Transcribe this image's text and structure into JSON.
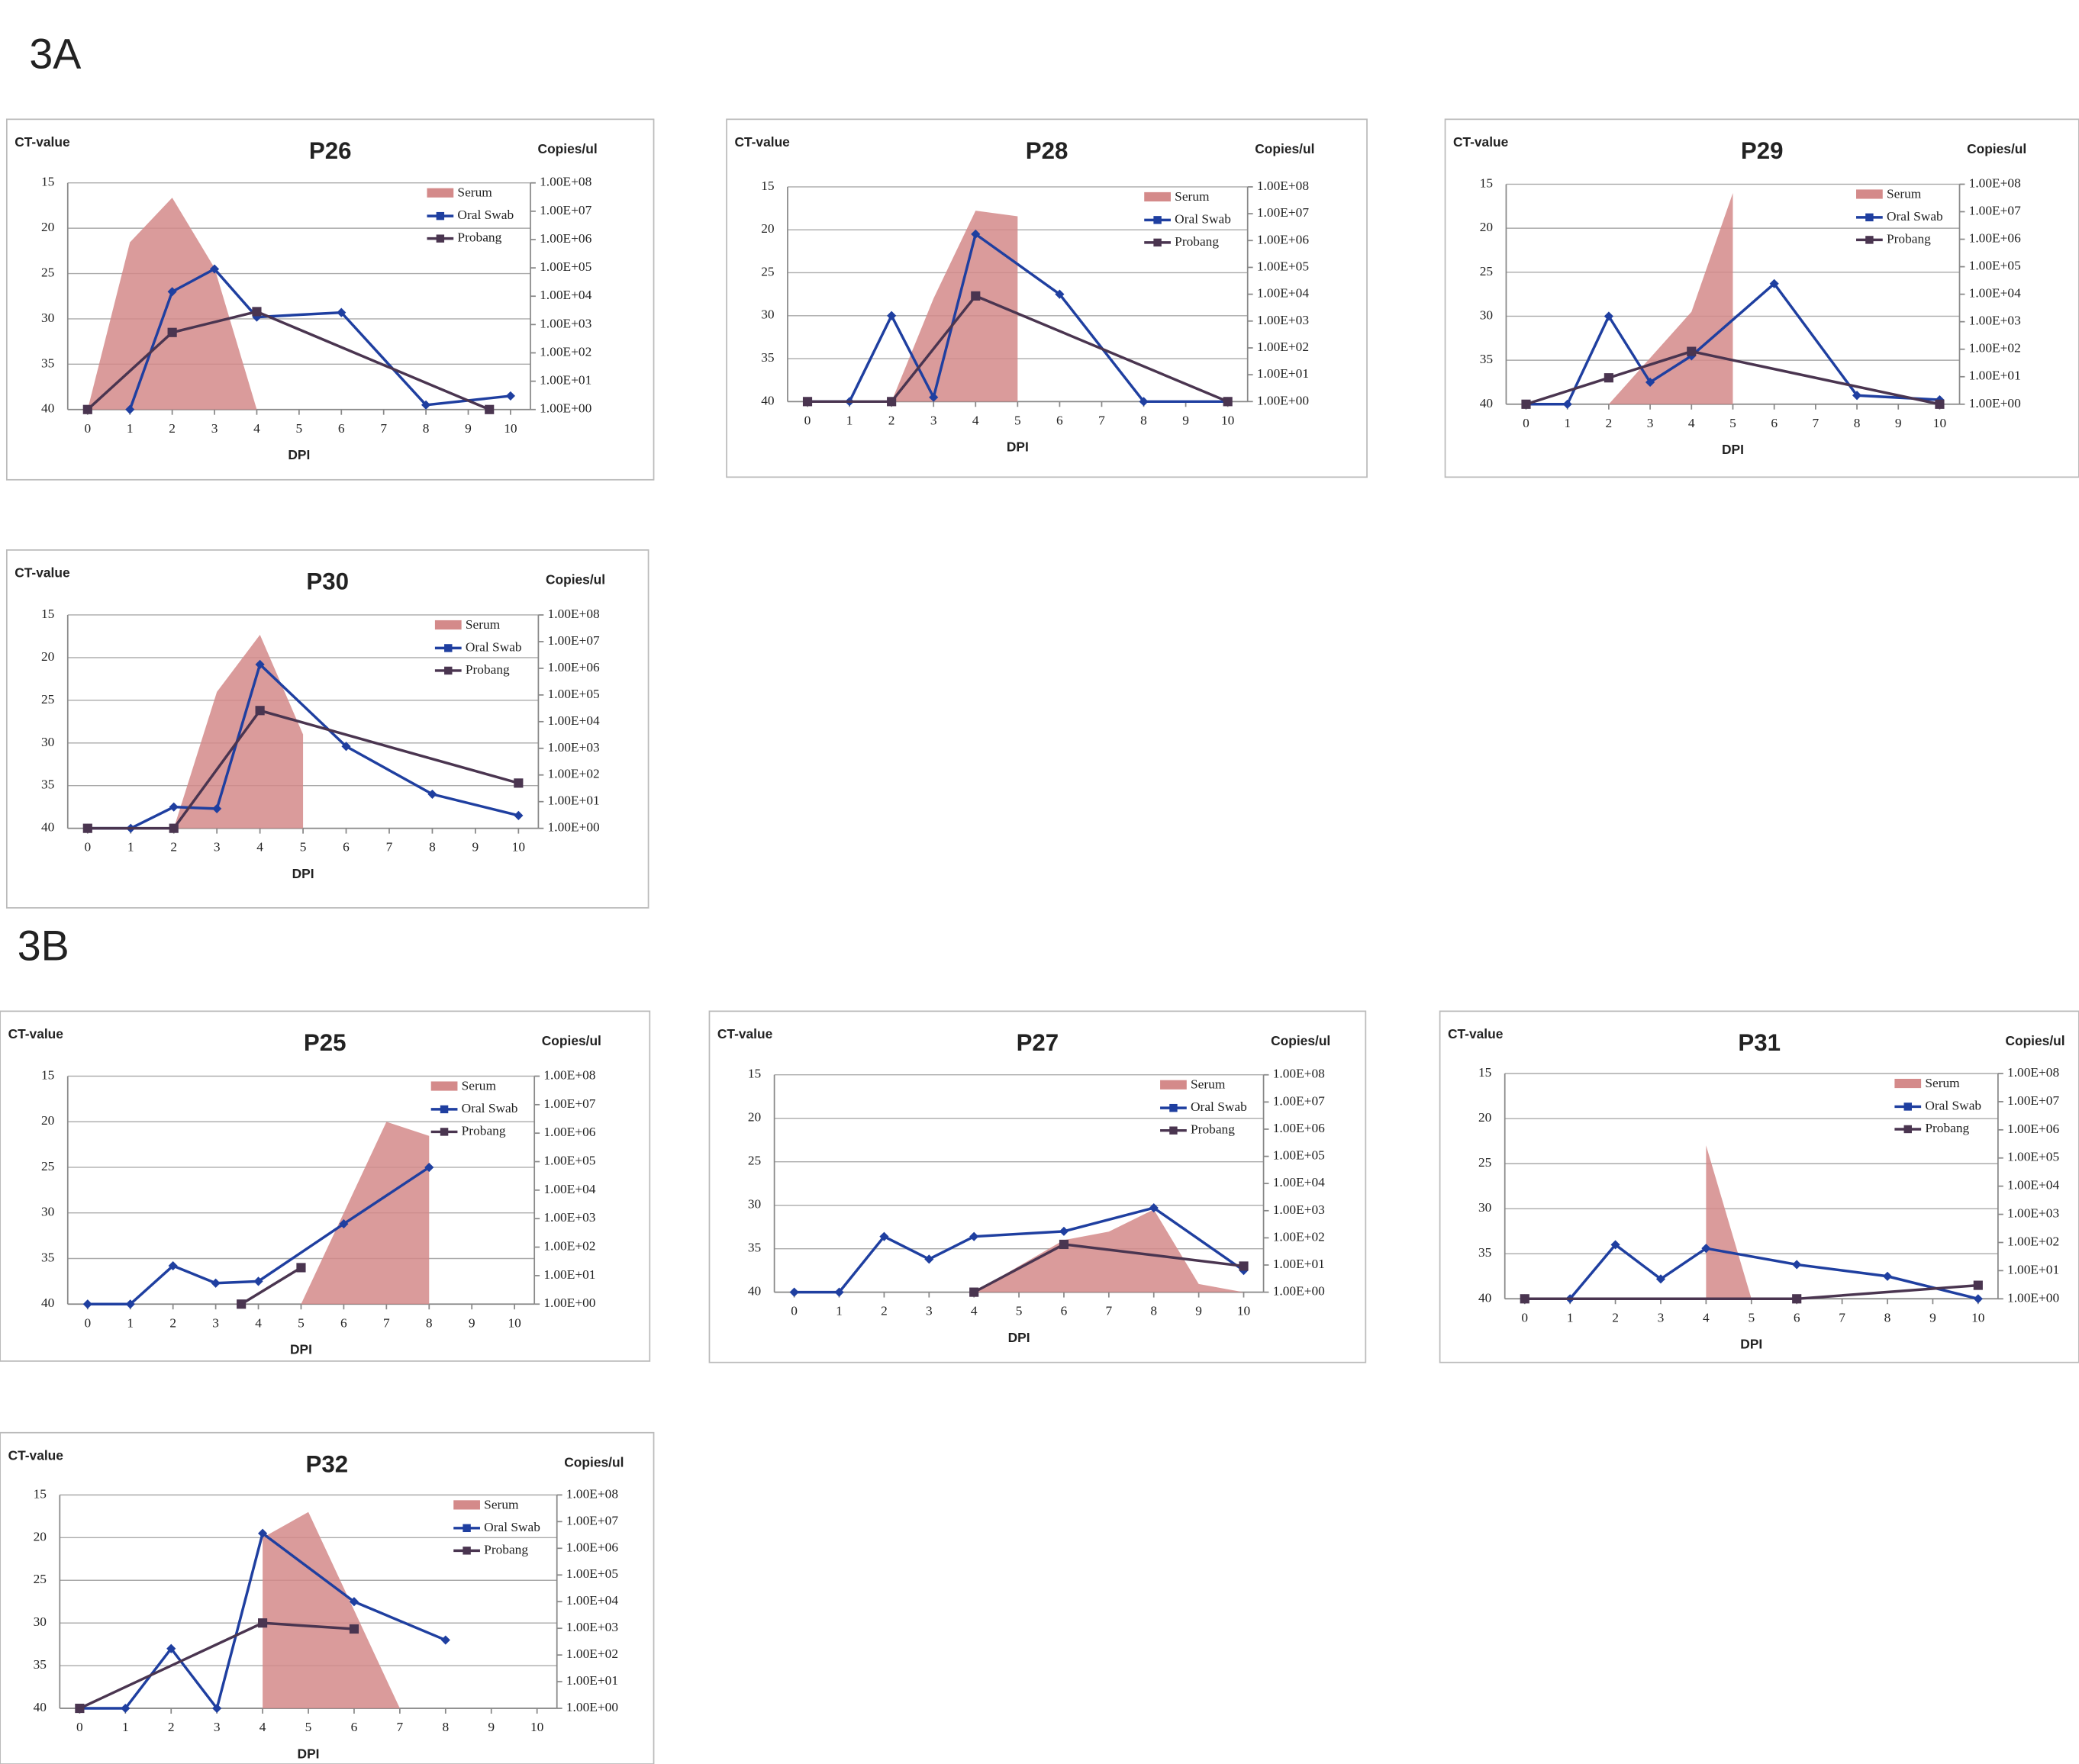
{
  "panels": [
    "3A",
    "3B"
  ],
  "chart_data": [
    {
      "type": "line",
      "title": "P26",
      "y_label": "CT-value",
      "y2_label": "Copies/ul",
      "x_label": "DPI",
      "xlim": [
        0,
        10
      ],
      "xticks": [
        0,
        1,
        2,
        3,
        4,
        5,
        6,
        7,
        8,
        9,
        10
      ],
      "ylim": [
        40,
        15
      ],
      "yticks": [
        15,
        20,
        25,
        30,
        35,
        40
      ],
      "y2lim": [
        1,
        100000000
      ],
      "y2_log": true,
      "y2ticks": [
        {
          "value": 100000000,
          "label": "1.00E+08"
        },
        {
          "value": 10000000,
          "label": "1.00E+07"
        },
        {
          "value": 1000000,
          "label": "1.00E+06"
        },
        {
          "value": 100000,
          "label": "1.00E+05"
        },
        {
          "value": 10000,
          "label": "1.00E+04"
        },
        {
          "value": 1000,
          "label": "1.00E+03"
        },
        {
          "value": 100,
          "label": "1.00E+02"
        },
        {
          "value": 10,
          "label": "1.00E+01"
        },
        {
          "value": 1,
          "label": "1.00E+00"
        }
      ],
      "grid": true,
      "legend": "upper right",
      "series": [
        {
          "name": "Serum",
          "type": "area",
          "axis": "y2",
          "color": "#d48a8a",
          "x": [
            0,
            1,
            2,
            3,
            4
          ],
          "values": [
            1,
            800000,
            30000000,
            100000,
            1
          ]
        },
        {
          "name": "Oral Swab",
          "type": "line",
          "color": "#1f3fa0",
          "x": [
            1,
            2,
            3,
            4,
            6,
            8,
            10
          ],
          "values": [
            40,
            27,
            24.5,
            29.8,
            29.3,
            39.5,
            38.5
          ]
        },
        {
          "name": "Probang",
          "type": "line",
          "color": "#4a3550",
          "x": [
            0,
            2,
            4,
            9.5
          ],
          "values": [
            40,
            31.5,
            29.2,
            40
          ]
        }
      ]
    },
    {
      "type": "line",
      "title": "P28",
      "y_label": "CT-value",
      "y2_label": "Copies/ul",
      "x_label": "DPI",
      "xlim": [
        0,
        10
      ],
      "xticks": [
        0,
        1,
        2,
        3,
        4,
        5,
        6,
        7,
        8,
        9,
        10
      ],
      "ylim": [
        40,
        15
      ],
      "yticks": [
        15,
        20,
        25,
        30,
        35,
        40
      ],
      "y2lim": [
        1,
        100000000
      ],
      "y2_log": true,
      "y2ticks": [
        {
          "value": 100000000,
          "label": "1.00E+08"
        },
        {
          "value": 10000000,
          "label": "1.00E+07"
        },
        {
          "value": 1000000,
          "label": "1.00E+06"
        },
        {
          "value": 100000,
          "label": "1.00E+05"
        },
        {
          "value": 10000,
          "label": "1.00E+04"
        },
        {
          "value": 1000,
          "label": "1.00E+03"
        },
        {
          "value": 100,
          "label": "1.00E+02"
        },
        {
          "value": 10,
          "label": "1.00E+01"
        },
        {
          "value": 1,
          "label": "1.00E+00"
        }
      ],
      "grid": true,
      "legend": "upper right",
      "series": [
        {
          "name": "Serum",
          "type": "area",
          "axis": "y2",
          "color": "#d48a8a",
          "x": [
            2,
            3,
            4,
            5
          ],
          "values": [
            1,
            7000,
            13000000,
            8000000
          ]
        },
        {
          "name": "Oral Swab",
          "type": "line",
          "color": "#1f3fa0",
          "x": [
            0,
            1,
            2,
            3,
            4,
            6,
            8,
            10
          ],
          "values": [
            40,
            40,
            30,
            39.5,
            20.5,
            27.5,
            40,
            40
          ]
        },
        {
          "name": "Probang",
          "type": "line",
          "color": "#4a3550",
          "x": [
            0,
            2,
            4,
            10
          ],
          "values": [
            40,
            40,
            27.7,
            40
          ]
        }
      ]
    },
    {
      "type": "line",
      "title": "P29",
      "y_label": "CT-value",
      "y2_label": "Copies/ul",
      "x_label": "DPI",
      "xlim": [
        0,
        10
      ],
      "xticks": [
        0,
        1,
        2,
        3,
        4,
        5,
        6,
        7,
        8,
        9,
        10
      ],
      "ylim": [
        40,
        15
      ],
      "yticks": [
        15,
        20,
        25,
        30,
        35,
        40
      ],
      "y2lim": [
        1,
        100000000
      ],
      "y2_log": true,
      "y2ticks": [
        {
          "value": 100000000,
          "label": "1.00E+08"
        },
        {
          "value": 10000000,
          "label": "1.00E+07"
        },
        {
          "value": 1000000,
          "label": "1.00E+06"
        },
        {
          "value": 100000,
          "label": "1.00E+05"
        },
        {
          "value": 10000,
          "label": "1.00E+04"
        },
        {
          "value": 1000,
          "label": "1.00E+03"
        },
        {
          "value": 100,
          "label": "1.00E+02"
        },
        {
          "value": 10,
          "label": "1.00E+01"
        },
        {
          "value": 1,
          "label": "1.00E+00"
        }
      ],
      "grid": true,
      "legend": "upper right",
      "series": [
        {
          "name": "Serum",
          "type": "area",
          "axis": "y2",
          "color": "#d48a8a",
          "x": [
            2,
            4,
            5
          ],
          "values": [
            1,
            2300,
            48000000
          ]
        },
        {
          "name": "Oral Swab",
          "type": "line",
          "color": "#1f3fa0",
          "x": [
            0,
            1,
            2,
            3,
            4,
            6,
            8,
            10
          ],
          "values": [
            40,
            40,
            30,
            37.5,
            34.5,
            26.3,
            39,
            39.5
          ]
        },
        {
          "name": "Probang",
          "type": "line",
          "color": "#4a3550",
          "x": [
            0,
            2,
            4,
            10
          ],
          "values": [
            40,
            37,
            34,
            40
          ]
        }
      ]
    },
    {
      "type": "line",
      "title": "P30",
      "y_label": "CT-value",
      "y2_label": "Copies/ul",
      "x_label": "DPI",
      "xlim": [
        0,
        10
      ],
      "xticks": [
        0,
        1,
        2,
        3,
        4,
        5,
        6,
        7,
        8,
        9,
        10
      ],
      "ylim": [
        40,
        15
      ],
      "yticks": [
        15,
        20,
        25,
        30,
        35,
        40
      ],
      "y2lim": [
        1,
        100000000
      ],
      "y2_log": true,
      "y2ticks": [
        {
          "value": 100000000,
          "label": "1.00E+08"
        },
        {
          "value": 10000000,
          "label": "1.00E+07"
        },
        {
          "value": 1000000,
          "label": "1.00E+06"
        },
        {
          "value": 100000,
          "label": "1.00E+05"
        },
        {
          "value": 10000,
          "label": "1.00E+04"
        },
        {
          "value": 1000,
          "label": "1.00E+03"
        },
        {
          "value": 100,
          "label": "1.00E+02"
        },
        {
          "value": 10,
          "label": "1.00E+01"
        },
        {
          "value": 1,
          "label": "1.00E+00"
        }
      ],
      "grid": true,
      "legend": "upper right",
      "series": [
        {
          "name": "Serum",
          "type": "area",
          "axis": "y2",
          "color": "#d48a8a",
          "x": [
            2,
            3,
            4,
            5
          ],
          "values": [
            1,
            130000,
            18000000,
            3300
          ]
        },
        {
          "name": "Oral Swab",
          "type": "line",
          "color": "#1f3fa0",
          "x": [
            0,
            1,
            2,
            3,
            4,
            6,
            8,
            10
          ],
          "values": [
            40,
            40,
            37.5,
            37.7,
            20.8,
            30.4,
            36,
            38.5
          ]
        },
        {
          "name": "Probang",
          "type": "line",
          "color": "#4a3550",
          "x": [
            0,
            2,
            4,
            10
          ],
          "values": [
            40,
            40,
            26.2,
            34.7
          ]
        }
      ]
    },
    {
      "type": "line",
      "title": "P25",
      "y_label": "CT-value",
      "y2_label": "Copies/ul",
      "x_label": "DPI",
      "xlim": [
        0,
        10
      ],
      "xticks": [
        0,
        1,
        2,
        3,
        4,
        5,
        6,
        7,
        8,
        9,
        10
      ],
      "ylim": [
        40,
        15
      ],
      "yticks": [
        15,
        20,
        25,
        30,
        35,
        40
      ],
      "y2lim": [
        1,
        100000000
      ],
      "y2_log": true,
      "y2ticks": [
        {
          "value": 100000000,
          "label": "1.00E+08"
        },
        {
          "value": 10000000,
          "label": "1.00E+07"
        },
        {
          "value": 1000000,
          "label": "1.00E+06"
        },
        {
          "value": 100000,
          "label": "1.00E+05"
        },
        {
          "value": 10000,
          "label": "1.00E+04"
        },
        {
          "value": 1000,
          "label": "1.00E+03"
        },
        {
          "value": 100,
          "label": "1.00E+02"
        },
        {
          "value": 10,
          "label": "1.00E+01"
        },
        {
          "value": 1,
          "label": "1.00E+00"
        }
      ],
      "grid": true,
      "legend": "upper right",
      "series": [
        {
          "name": "Serum",
          "type": "area",
          "axis": "y2",
          "color": "#d48a8a",
          "x": [
            5,
            7,
            8
          ],
          "values": [
            1,
            2500000,
            800000
          ]
        },
        {
          "name": "Oral Swab",
          "type": "line",
          "color": "#1f3fa0",
          "x": [
            0,
            1,
            2,
            3,
            4,
            6,
            8
          ],
          "values": [
            40,
            40,
            35.8,
            37.7,
            37.5,
            31.2,
            25
          ]
        },
        {
          "name": "Probang",
          "type": "line",
          "color": "#4a3550",
          "x": [
            3.6,
            5
          ],
          "values": [
            40,
            36
          ]
        }
      ]
    },
    {
      "type": "line",
      "title": "P27",
      "y_label": "CT-value",
      "y2_label": "Copies/ul",
      "x_label": "DPI",
      "xlim": [
        0,
        10
      ],
      "xticks": [
        0,
        1,
        2,
        3,
        4,
        5,
        6,
        7,
        8,
        9,
        10
      ],
      "ylim": [
        40,
        15
      ],
      "yticks": [
        15,
        20,
        25,
        30,
        35,
        40
      ],
      "y2lim": [
        1,
        100000000
      ],
      "y2_log": true,
      "y2ticks": [
        {
          "value": 100000000,
          "label": "1.00E+08"
        },
        {
          "value": 10000000,
          "label": "1.00E+07"
        },
        {
          "value": 1000000,
          "label": "1.00E+06"
        },
        {
          "value": 100000,
          "label": "1.00E+05"
        },
        {
          "value": 10000,
          "label": "1.00E+04"
        },
        {
          "value": 1000,
          "label": "1.00E+03"
        },
        {
          "value": 100,
          "label": "1.00E+02"
        },
        {
          "value": 10,
          "label": "1.00E+01"
        },
        {
          "value": 1,
          "label": "1.00E+00"
        }
      ],
      "grid": true,
      "legend": "upper right",
      "series": [
        {
          "name": "Serum",
          "type": "area",
          "axis": "y2",
          "color": "#d48a8a",
          "x": [
            4,
            6,
            7,
            8,
            9,
            10
          ],
          "values": [
            1,
            83,
            170,
            1100,
            2,
            1
          ]
        },
        {
          "name": "Oral Swab",
          "type": "line",
          "color": "#1f3fa0",
          "x": [
            0,
            1,
            2,
            3,
            4,
            6,
            8,
            10
          ],
          "values": [
            40,
            40,
            33.6,
            36.2,
            33.6,
            33,
            30.3,
            37.5
          ]
        },
        {
          "name": "Probang",
          "type": "line",
          "color": "#4a3550",
          "x": [
            4,
            6,
            10
          ],
          "values": [
            40,
            34.5,
            37
          ]
        }
      ]
    },
    {
      "type": "line",
      "title": "P31",
      "y_label": "CT-value",
      "y2_label": "Copies/ul",
      "x_label": "DPI",
      "xlim": [
        0,
        10
      ],
      "xticks": [
        0,
        1,
        2,
        3,
        4,
        5,
        6,
        7,
        8,
        9,
        10
      ],
      "ylim": [
        40,
        15
      ],
      "yticks": [
        15,
        20,
        25,
        30,
        35,
        40
      ],
      "y2lim": [
        1,
        100000000
      ],
      "y2_log": true,
      "y2ticks": [
        {
          "value": 100000000,
          "label": "1.00E+08"
        },
        {
          "value": 10000000,
          "label": "1.00E+07"
        },
        {
          "value": 1000000,
          "label": "1.00E+06"
        },
        {
          "value": 100000,
          "label": "1.00E+05"
        },
        {
          "value": 10000,
          "label": "1.00E+04"
        },
        {
          "value": 1000,
          "label": "1.00E+03"
        },
        {
          "value": 100,
          "label": "1.00E+02"
        },
        {
          "value": 10,
          "label": "1.00E+01"
        },
        {
          "value": 1,
          "label": "1.00E+00"
        }
      ],
      "grid": true,
      "legend": "upper right",
      "series": [
        {
          "name": "Serum",
          "type": "area",
          "axis": "y2",
          "color": "#d48a8a",
          "x": [
            4,
            5
          ],
          "values": [
            280000,
            1
          ]
        },
        {
          "name": "Oral Swab",
          "type": "line",
          "color": "#1f3fa0",
          "x": [
            0,
            1,
            2,
            3,
            4,
            6,
            8,
            10
          ],
          "values": [
            40,
            40,
            34,
            37.8,
            34.4,
            36.2,
            37.5,
            40
          ]
        },
        {
          "name": "Probang",
          "type": "line",
          "color": "#4a3550",
          "x": [
            0,
            6,
            10
          ],
          "values": [
            40,
            40,
            38.5
          ]
        }
      ]
    },
    {
      "type": "line",
      "title": "P32",
      "y_label": "CT-value",
      "y2_label": "Copies/ul",
      "x_label": "DPI",
      "xlim": [
        0,
        10
      ],
      "xticks": [
        0,
        1,
        2,
        3,
        4,
        5,
        6,
        7,
        8,
        9,
        10
      ],
      "ylim": [
        40,
        15
      ],
      "yticks": [
        15,
        20,
        25,
        30,
        35,
        40
      ],
      "y2lim": [
        1,
        100000000
      ],
      "y2_log": true,
      "y2ticks": [
        {
          "value": 100000000,
          "label": "1.00E+08"
        },
        {
          "value": 10000000,
          "label": "1.00E+07"
        },
        {
          "value": 1000000,
          "label": "1.00E+06"
        },
        {
          "value": 100000,
          "label": "1.00E+05"
        },
        {
          "value": 10000,
          "label": "1.00E+04"
        },
        {
          "value": 1000,
          "label": "1.00E+03"
        },
        {
          "value": 100,
          "label": "1.00E+02"
        },
        {
          "value": 10,
          "label": "1.00E+01"
        },
        {
          "value": 1,
          "label": "1.00E+00"
        }
      ],
      "grid": true,
      "legend": "upper right",
      "series": [
        {
          "name": "Serum",
          "type": "area",
          "axis": "y2",
          "color": "#d48a8a",
          "x": [
            4,
            5,
            7
          ],
          "values": [
            2500000,
            23000000,
            1
          ]
        },
        {
          "name": "Oral Swab",
          "type": "line",
          "color": "#1f3fa0",
          "x": [
            0,
            1,
            2,
            3,
            4,
            6,
            8
          ],
          "values": [
            40,
            40,
            33,
            40,
            19.5,
            27.5,
            32
          ]
        },
        {
          "name": "Probang",
          "type": "line",
          "color": "#4a3550",
          "x": [
            0,
            4,
            6
          ],
          "values": [
            40,
            30,
            30.7
          ]
        }
      ]
    }
  ]
}
